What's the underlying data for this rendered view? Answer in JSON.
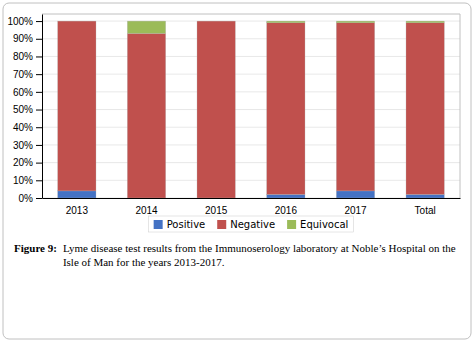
{
  "chart_data": {
    "type": "bar",
    "stacked": true,
    "categories": [
      "2013",
      "2014",
      "2015",
      "2016",
      "2017",
      "Total"
    ],
    "series": [
      {
        "name": "Positive",
        "color": "#4472c4",
        "values": [
          0.04,
          0.0,
          0.0,
          0.02,
          0.04,
          0.02
        ]
      },
      {
        "name": "Negative",
        "color": "#c0504d",
        "values": [
          0.96,
          0.93,
          1.0,
          0.97,
          0.95,
          0.97
        ]
      },
      {
        "name": "Equivocal",
        "color": "#9bbb59",
        "values": [
          0.0,
          0.07,
          0.0,
          0.01,
          0.01,
          0.01
        ]
      }
    ],
    "ylim": [
      0,
      1.04
    ],
    "yticks": [
      {
        "value": 0.0,
        "label": "0%"
      },
      {
        "value": 0.1,
        "label": "10%"
      },
      {
        "value": 0.2,
        "label": "20%"
      },
      {
        "value": 0.3,
        "label": "30%"
      },
      {
        "value": 0.4,
        "label": "40%"
      },
      {
        "value": 0.5,
        "label": "50%"
      },
      {
        "value": 0.6,
        "label": "60%"
      },
      {
        "value": 0.7,
        "label": "70%"
      },
      {
        "value": 0.8,
        "label": "80%"
      },
      {
        "value": 0.9,
        "label": "90%"
      },
      {
        "value": 1.0,
        "label": "100%"
      }
    ],
    "grid": true,
    "legend": "bottom",
    "annotations": [
      "Figure 9:",
      "Lyme disease test results from the Immunoserology laboratory at Noble’s Hospital on the Isle of Man for the years 2013-2017."
    ]
  }
}
